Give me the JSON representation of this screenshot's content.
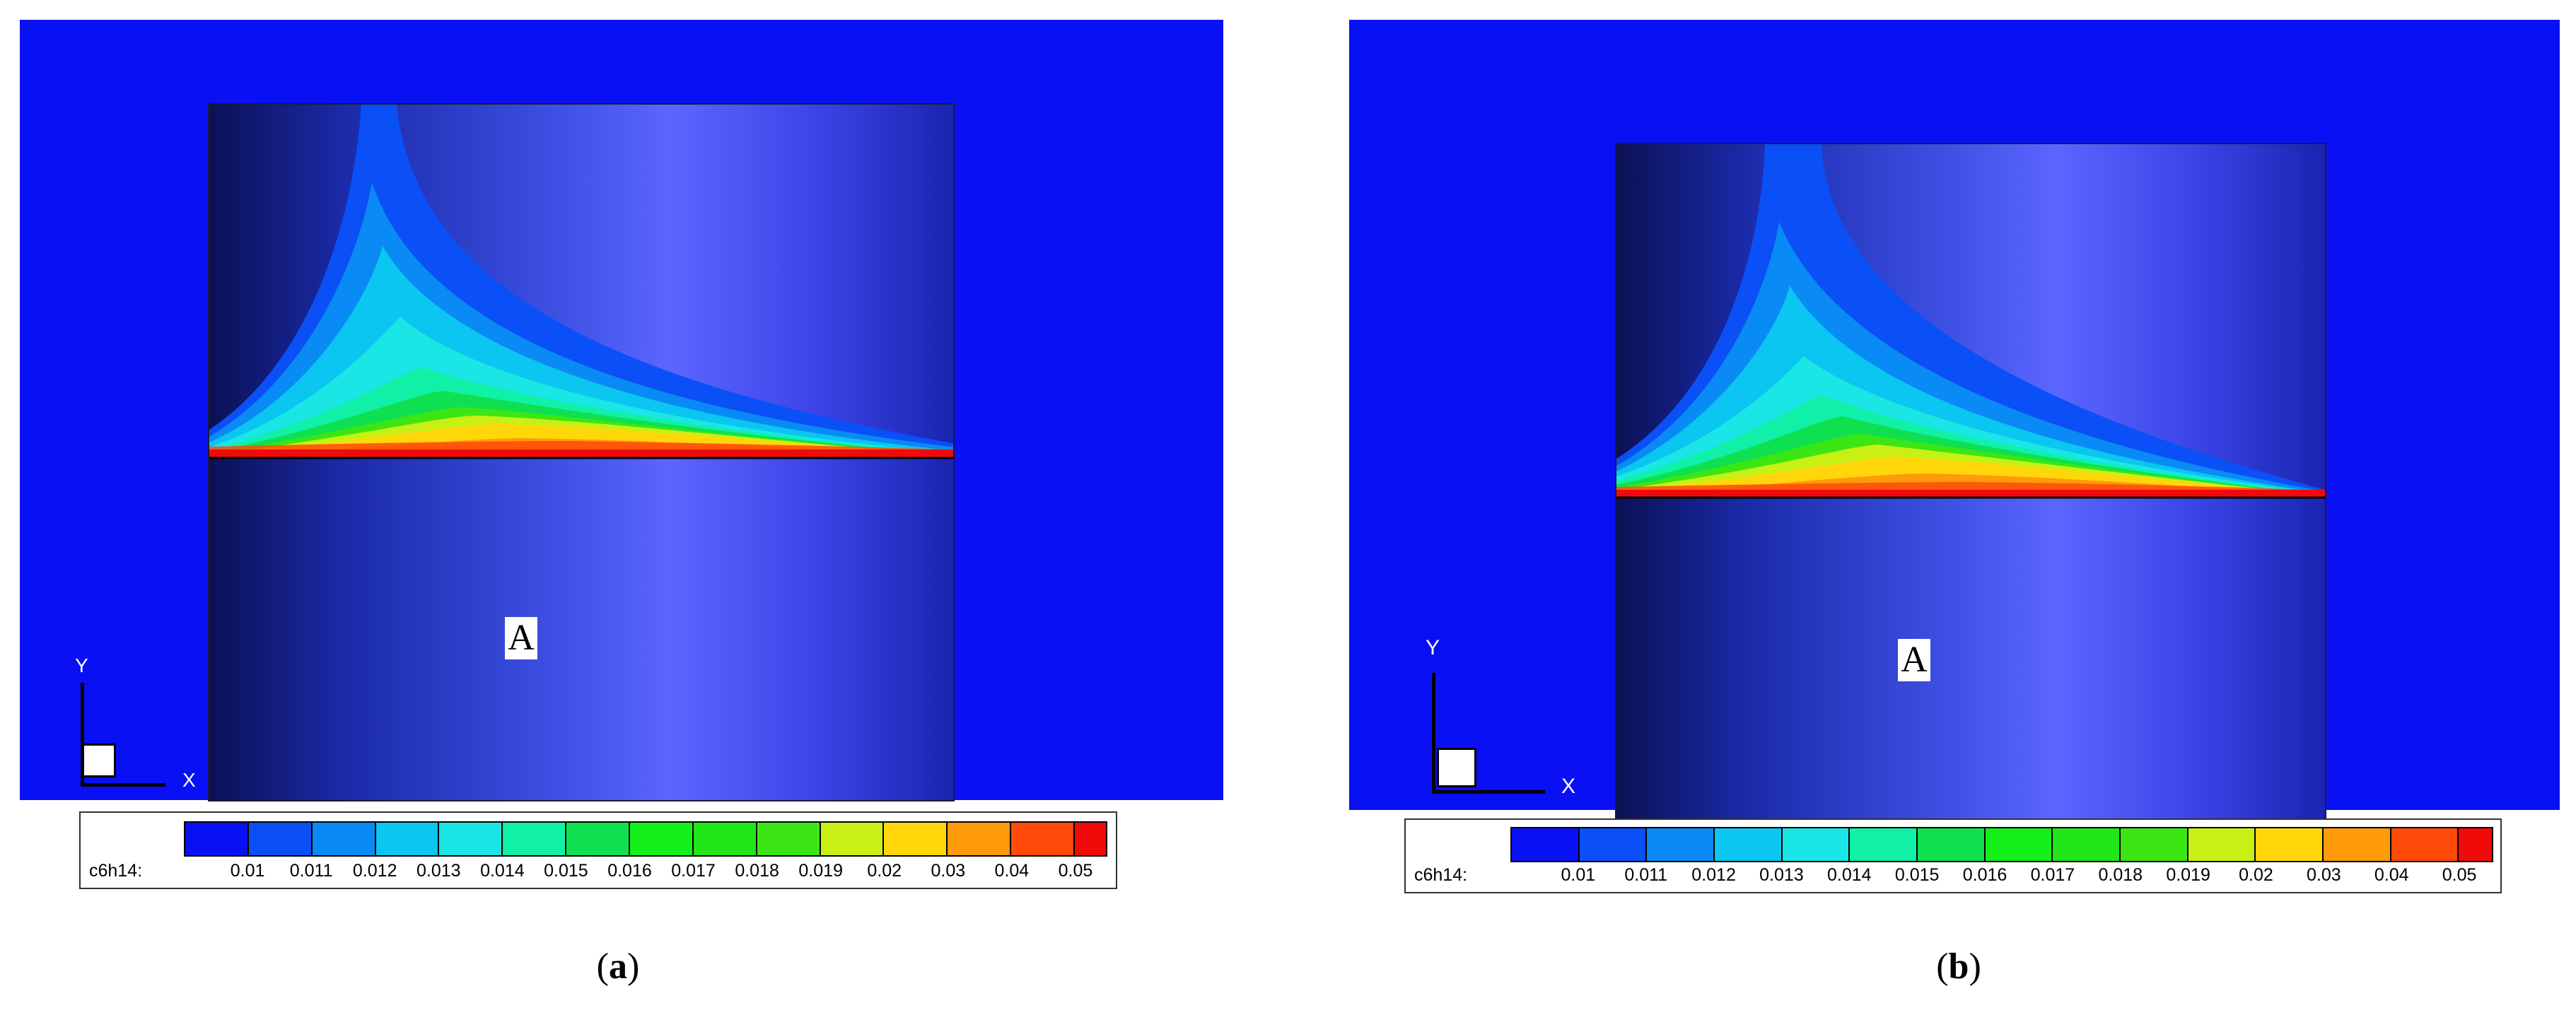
{
  "panels": [
    {
      "id": "a",
      "caption_open": "(",
      "caption_letter": "a",
      "caption_close": ")",
      "point_label": "A",
      "axis_y_label": "Y",
      "axis_x_label": "X",
      "legend_variable": "c6h14:",
      "interface_position": 0.49
    },
    {
      "id": "b",
      "caption_open": "(",
      "caption_letter": "b",
      "caption_close": ")",
      "point_label": "A",
      "axis_y_label": "Y",
      "axis_x_label": "X",
      "legend_variable": "c6h14:",
      "interface_position": 0.49
    }
  ],
  "legend": {
    "levels": [
      "0.01",
      "0.011",
      "0.012",
      "0.013",
      "0.014",
      "0.015",
      "0.016",
      "0.017",
      "0.018",
      "0.019",
      "0.02",
      "0.03",
      "0.04",
      "0.05"
    ],
    "colors": [
      "#0a10f4",
      "#0a50f6",
      "#0a8af4",
      "#0ac6f0",
      "#1ae6e6",
      "#10f0a6",
      "#0ee050",
      "#14f01a",
      "#20e61a",
      "#3ce614",
      "#c8f014",
      "#ffd60a",
      "#ff9a0a",
      "#ff4a0a",
      "#f00a0a"
    ],
    "background_color": "#0a10f4"
  }
}
